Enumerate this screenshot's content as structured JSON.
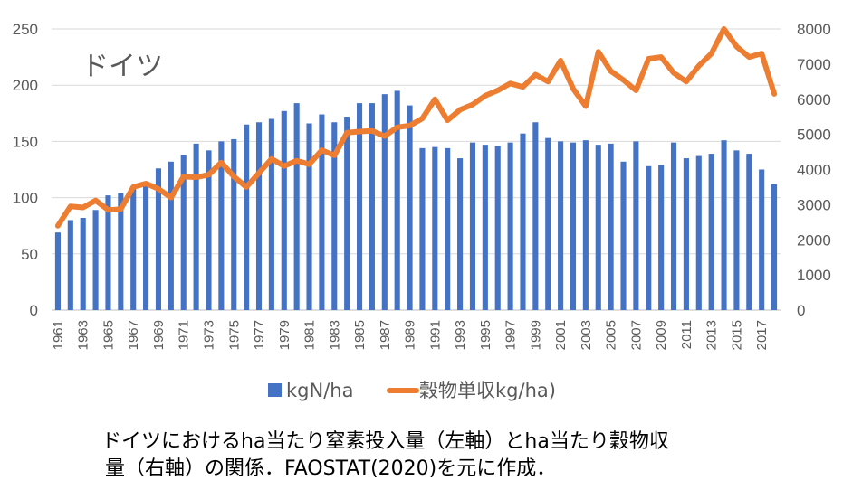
{
  "chart_data": {
    "type": "bar+line",
    "inset_title": "ドイツ",
    "left_axis": {
      "ylim": [
        0,
        250
      ],
      "ticks": [
        "0",
        "50",
        "100",
        "150",
        "200",
        "250"
      ]
    },
    "right_axis": {
      "ylim": [
        0,
        8000
      ],
      "ticks": [
        "0",
        "1000",
        "2000",
        "3000",
        "4000",
        "5000",
        "6000",
        "7000",
        "8000"
      ]
    },
    "x_tick_labels": [
      "1961",
      "1963",
      "1965",
      "1967",
      "1969",
      "1971",
      "1973",
      "1975",
      "1977",
      "1979",
      "1981",
      "1983",
      "1985",
      "1987",
      "1989",
      "1991",
      "1993",
      "1995",
      "1997",
      "1999",
      "2001",
      "2003",
      "2005",
      "2007",
      "2009",
      "2011",
      "2013",
      "2015",
      "2017"
    ],
    "years": [
      1961,
      1962,
      1963,
      1964,
      1965,
      1966,
      1967,
      1968,
      1969,
      1970,
      1971,
      1972,
      1973,
      1974,
      1975,
      1976,
      1977,
      1978,
      1979,
      1980,
      1981,
      1982,
      1983,
      1984,
      1985,
      1986,
      1987,
      1988,
      1989,
      1990,
      1991,
      1992,
      1993,
      1994,
      1995,
      1996,
      1997,
      1998,
      1999,
      2000,
      2001,
      2002,
      2003,
      2004,
      2005,
      2006,
      2007,
      2008,
      2009,
      2010,
      2011,
      2012,
      2013,
      2014,
      2015,
      2016,
      2017,
      2018
    ],
    "series": [
      {
        "name": "kgN/ha",
        "axis": "left",
        "kind": "bar",
        "color": "#4472C4",
        "values": [
          69,
          80,
          82,
          89,
          102,
          104,
          110,
          114,
          126,
          132,
          138,
          148,
          142,
          150,
          152,
          165,
          167,
          170,
          177,
          184,
          166,
          174,
          167,
          172,
          184,
          184,
          192,
          195,
          182,
          144,
          145,
          144,
          135,
          149,
          147,
          146,
          149,
          157,
          167,
          153,
          150,
          149,
          151,
          147,
          148,
          132,
          150,
          128,
          129,
          149,
          135,
          137,
          139,
          151,
          142,
          139,
          125,
          112
        ]
      },
      {
        "name": "穀物単収kg/ha)",
        "axis": "right",
        "kind": "line",
        "color": "#ED7D31",
        "values": [
          2400,
          2950,
          2920,
          3120,
          2850,
          2870,
          3500,
          3600,
          3450,
          3200,
          3800,
          3780,
          3850,
          4200,
          3800,
          3500,
          3900,
          4300,
          4100,
          4250,
          4150,
          4550,
          4400,
          5050,
          5080,
          5100,
          4950,
          5200,
          5250,
          5450,
          6000,
          5400,
          5700,
          5850,
          6100,
          6250,
          6450,
          6350,
          6700,
          6500,
          7100,
          6300,
          5800,
          7350,
          6800,
          6550,
          6250,
          7150,
          7200,
          6750,
          6500,
          6950,
          7300,
          8000,
          7500,
          7200,
          7300,
          6150
        ]
      }
    ],
    "legend_placement": "bottom"
  },
  "caption": {
    "line1": "ドイツにおけるha当たり窒素投入量（左軸）とha当たり穀物収",
    "line2": "量（右軸）の関係．FAOSTAT(2020)を元に作成．"
  }
}
